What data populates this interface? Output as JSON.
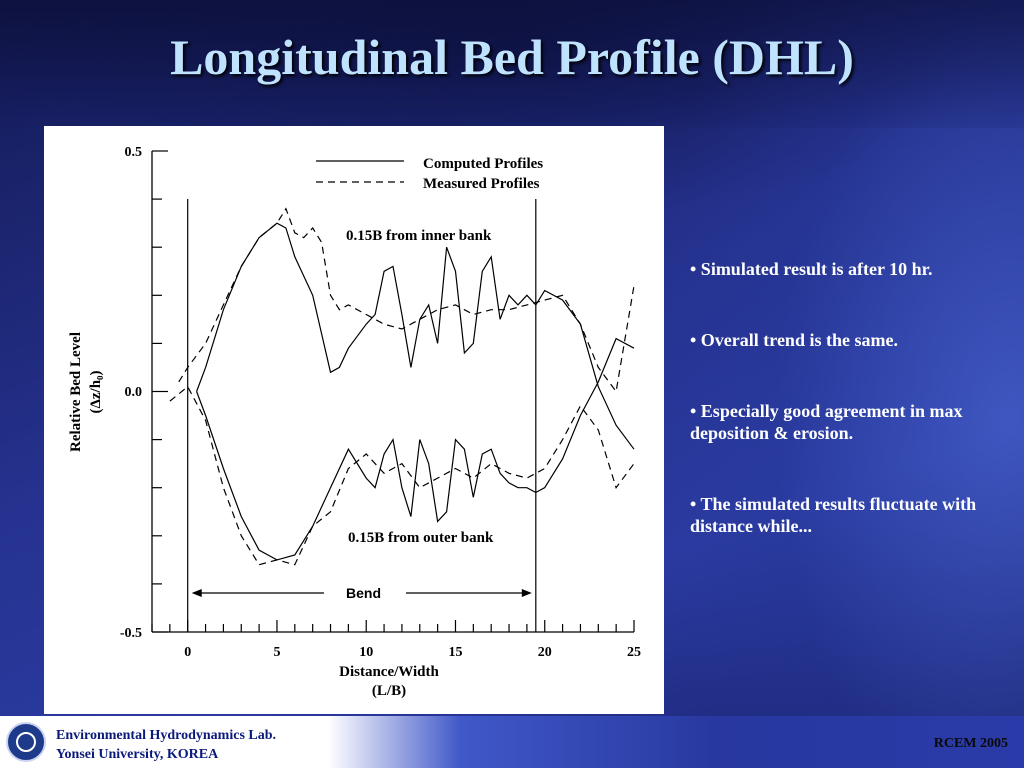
{
  "slide": {
    "title": "Longitudinal Bed Profile (DHL)",
    "bullets": [
      "• Simulated result is after 10 hr.",
      "• Overall trend is the same.",
      "• Especially good agreement in max deposition & erosion.",
      "• The simulated results fluctuate with distance while..."
    ],
    "footer": {
      "lab_line1": "Environmental Hydrodynamics Lab.",
      "lab_line2": "Yonsei University, KOREA",
      "conference": "RCEM 2005"
    }
  },
  "chart_data": {
    "type": "line",
    "ylabel_line1": "Relative Bed Level",
    "ylabel_line2": "(Δz/h₀)",
    "xlabel_line1": "Distance/Width",
    "xlabel_line2": "(L/B)",
    "xlim": [
      -2,
      25
    ],
    "ylim": [
      -0.5,
      0.5
    ],
    "x_ticks": [
      0,
      5,
      10,
      15,
      20,
      25
    ],
    "y_ticks": [
      -0.5,
      0.0,
      0.5
    ],
    "y_tick_labels": [
      "-0.5",
      "0.0",
      "0.5"
    ],
    "legend": {
      "position": "top-right",
      "entries": [
        {
          "label": "Computed Profiles",
          "style": "solid"
        },
        {
          "label": "Measured Profiles",
          "style": "dashed"
        }
      ]
    },
    "annotations": {
      "inner_bank": "0.15B from inner bank",
      "outer_bank": "0.15B from outer bank",
      "bend": "Bend",
      "bend_range": [
        0,
        19.5
      ]
    },
    "series": [
      {
        "name": "Computed Profiles",
        "group": "inner",
        "style": "solid",
        "x": [
          0.5,
          1,
          2,
          3,
          4,
          5,
          5.5,
          6,
          7,
          8,
          8.5,
          9,
          10,
          10.5,
          11,
          11.5,
          12,
          12.5,
          13,
          13.5,
          14,
          14.5,
          15,
          15.5,
          16,
          16.5,
          17,
          17.5,
          18,
          18.5,
          19,
          19.5,
          20,
          21,
          22,
          23,
          24,
          25
        ],
        "y": [
          0.0,
          0.05,
          0.17,
          0.26,
          0.32,
          0.35,
          0.34,
          0.28,
          0.2,
          0.04,
          0.05,
          0.09,
          0.14,
          0.16,
          0.25,
          0.26,
          0.16,
          0.05,
          0.15,
          0.18,
          0.1,
          0.3,
          0.25,
          0.08,
          0.1,
          0.25,
          0.28,
          0.15,
          0.2,
          0.18,
          0.2,
          0.18,
          0.21,
          0.19,
          0.14,
          0.01,
          -0.07,
          -0.12
        ]
      },
      {
        "name": "Measured Profiles",
        "group": "inner",
        "style": "dashed",
        "x": [
          -0.5,
          0,
          1,
          2,
          3,
          4,
          5,
          5.5,
          6,
          6.5,
          7,
          7.5,
          8,
          8.5,
          9,
          10,
          11,
          12,
          13,
          14,
          15,
          16,
          17,
          18,
          19,
          20,
          21,
          22,
          23,
          24,
          25
        ],
        "y": [
          0.02,
          0.05,
          0.1,
          0.18,
          0.26,
          0.32,
          0.35,
          0.38,
          0.33,
          0.32,
          0.34,
          0.31,
          0.2,
          0.17,
          0.18,
          0.16,
          0.14,
          0.13,
          0.15,
          0.17,
          0.18,
          0.16,
          0.17,
          0.17,
          0.18,
          0.19,
          0.2,
          0.14,
          0.05,
          0.0,
          0.22
        ]
      },
      {
        "name": "Computed Profiles",
        "group": "outer",
        "style": "solid",
        "x": [
          0.5,
          1,
          2,
          3,
          4,
          5,
          6,
          7,
          8,
          9,
          10,
          10.5,
          11,
          11.5,
          12,
          12.5,
          13,
          13.5,
          14,
          14.5,
          15,
          15.5,
          16,
          16.5,
          17,
          17.5,
          18,
          18.5,
          19,
          19.5,
          20,
          21,
          22,
          23,
          24,
          25
        ],
        "y": [
          0.0,
          -0.05,
          -0.16,
          -0.26,
          -0.33,
          -0.35,
          -0.34,
          -0.28,
          -0.2,
          -0.12,
          -0.18,
          -0.2,
          -0.13,
          -0.1,
          -0.2,
          -0.26,
          -0.1,
          -0.15,
          -0.27,
          -0.25,
          -0.1,
          -0.12,
          -0.22,
          -0.13,
          -0.12,
          -0.17,
          -0.19,
          -0.2,
          -0.2,
          -0.21,
          -0.2,
          -0.14,
          -0.05,
          0.02,
          0.11,
          0.09
        ]
      },
      {
        "name": "Measured Profiles",
        "group": "outer",
        "style": "dashed",
        "x": [
          -1,
          0,
          1,
          2,
          3,
          4,
          5,
          6,
          7,
          8,
          9,
          10,
          11,
          12,
          13,
          14,
          15,
          16,
          17,
          18,
          19,
          20,
          21,
          22,
          23,
          24,
          25
        ],
        "y": [
          -0.02,
          0.01,
          -0.06,
          -0.2,
          -0.3,
          -0.36,
          -0.35,
          -0.36,
          -0.28,
          -0.25,
          -0.16,
          -0.13,
          -0.17,
          -0.15,
          -0.2,
          -0.18,
          -0.16,
          -0.18,
          -0.15,
          -0.17,
          -0.18,
          -0.16,
          -0.1,
          -0.03,
          -0.08,
          -0.2,
          -0.15
        ]
      }
    ]
  }
}
